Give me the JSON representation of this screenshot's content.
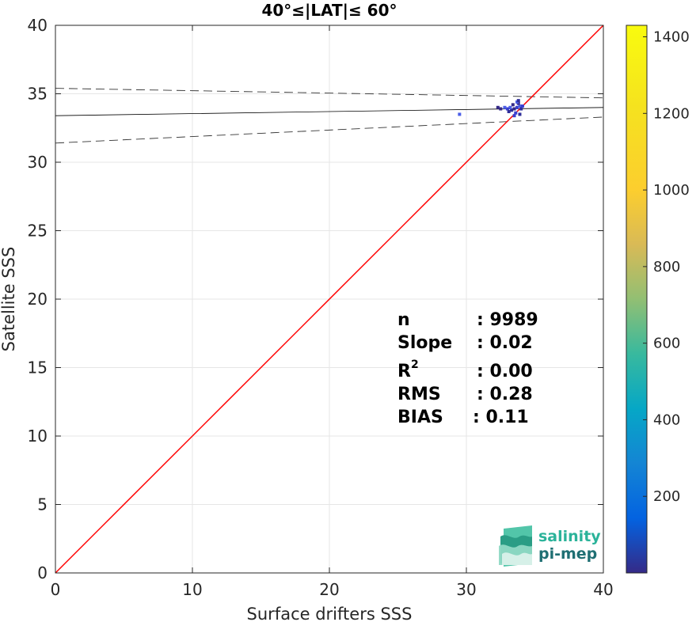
{
  "chart_data": {
    "type": "scatter",
    "title": "40°≤|LAT|≤ 60°",
    "xlabel": "Surface drifters SSS",
    "ylabel": "Satellite SSS",
    "xlim": [
      0,
      40
    ],
    "ylim": [
      0,
      40
    ],
    "xticks": [
      "0",
      "10",
      "20",
      "30",
      "40"
    ],
    "yticks": [
      "0",
      "5",
      "10",
      "15",
      "20",
      "25",
      "30",
      "35",
      "40"
    ],
    "grid": true,
    "identity_line": {
      "x": [
        0,
        40
      ],
      "y": [
        0,
        40
      ],
      "color": "#ff0000"
    },
    "fit_line": {
      "x": [
        0,
        40
      ],
      "y": [
        33.4,
        34.0
      ],
      "color": "#000000"
    },
    "confidence_upper": {
      "x": [
        0,
        40
      ],
      "y": [
        35.4,
        34.7
      ]
    },
    "confidence_lower": {
      "x": [
        0,
        40
      ],
      "y": [
        31.4,
        33.3
      ]
    },
    "points": [
      {
        "x": 33.5,
        "y": 33.9
      },
      {
        "x": 33.7,
        "y": 34.0
      },
      {
        "x": 33.9,
        "y": 34.1
      },
      {
        "x": 33.3,
        "y": 33.8
      },
      {
        "x": 33.8,
        "y": 34.3
      },
      {
        "x": 33.6,
        "y": 33.6
      },
      {
        "x": 33.2,
        "y": 34.0
      },
      {
        "x": 34.0,
        "y": 33.9
      },
      {
        "x": 33.4,
        "y": 34.2
      },
      {
        "x": 33.0,
        "y": 33.9
      },
      {
        "x": 32.8,
        "y": 34.0
      },
      {
        "x": 33.9,
        "y": 33.5
      },
      {
        "x": 32.5,
        "y": 33.9
      },
      {
        "x": 34.1,
        "y": 34.1
      },
      {
        "x": 33.7,
        "y": 34.4
      },
      {
        "x": 33.1,
        "y": 33.7
      },
      {
        "x": 32.3,
        "y": 34.0
      },
      {
        "x": 33.5,
        "y": 33.4
      },
      {
        "x": 29.5,
        "y": 33.5
      },
      {
        "x": 33.8,
        "y": 34.5
      }
    ],
    "colorbar": {
      "ticks": [
        "200",
        "400",
        "600",
        "800",
        "1000",
        "1200",
        "1400"
      ],
      "range": [
        0,
        1430
      ],
      "colormap": "parula"
    },
    "stats": {
      "n": {
        "label": "n",
        "value": ": 9989"
      },
      "slope": {
        "label": "Slope",
        "value": ": 0.02"
      },
      "r2": {
        "label": "R",
        "sup": "2",
        "value": ": 0.00"
      },
      "rms": {
        "label": "RMS",
        "value": ": 0.28"
      },
      "bias": {
        "label": "BIAS",
        "value": ": 0.11"
      }
    }
  },
  "logo": {
    "line1": "salinity",
    "line2": "pi-mep"
  }
}
